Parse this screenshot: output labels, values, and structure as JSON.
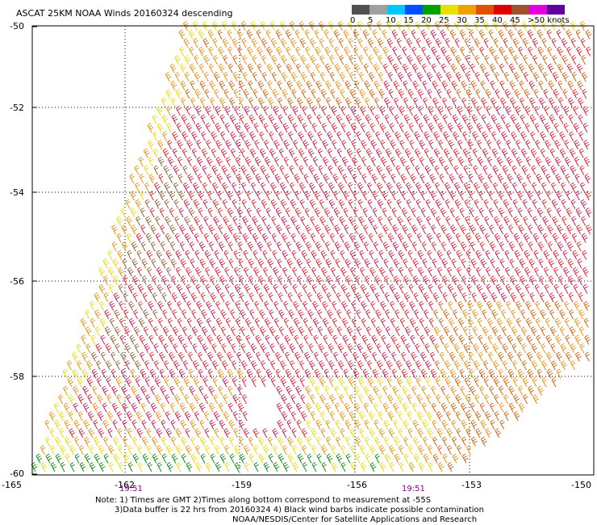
{
  "title": "ASCAT 25KM NOAA Winds 20160324 descending",
  "colorbar": {
    "ticks": [
      "0",
      "5",
      "10",
      "15",
      "20",
      "25",
      "30",
      "35",
      "40",
      "45",
      ">50 knots"
    ],
    "colors": [
      "#505050",
      "#a0a0a0",
      "#00c8ff",
      "#0050ff",
      "#00a000",
      "#e8e000",
      "#f0a000",
      "#e05000",
      "#e00000",
      "#a0522d",
      "#e000e0",
      "#6000a0"
    ]
  },
  "axes": {
    "y_ticks": [
      "-50",
      "-52",
      "-54",
      "-56",
      "-58",
      "-60"
    ],
    "x_ticks": [
      "-165",
      "-162",
      "-159",
      "-156",
      "-153",
      "-150"
    ],
    "x_times": [
      "19:51",
      "19:51"
    ]
  },
  "notes": {
    "line1": "Note: 1) Times are GMT 2)Times along bottom correspond to measurement at -55S",
    "line2": "3)Data buffer is 22 hrs from 20160324 4) Black wind barbs indicate possible contamination",
    "line3": "NOAA/NESDIS/Center for Satellite Applications and Research"
  },
  "swath_colors": {
    "yellow": "#e8d800",
    "orange": "#e88a00",
    "dark_orange": "#d05a00",
    "red": "#e01828",
    "crimson": "#c81048",
    "brown": "#8b5a2b",
    "green": "#008a00",
    "black": "#000000"
  }
}
